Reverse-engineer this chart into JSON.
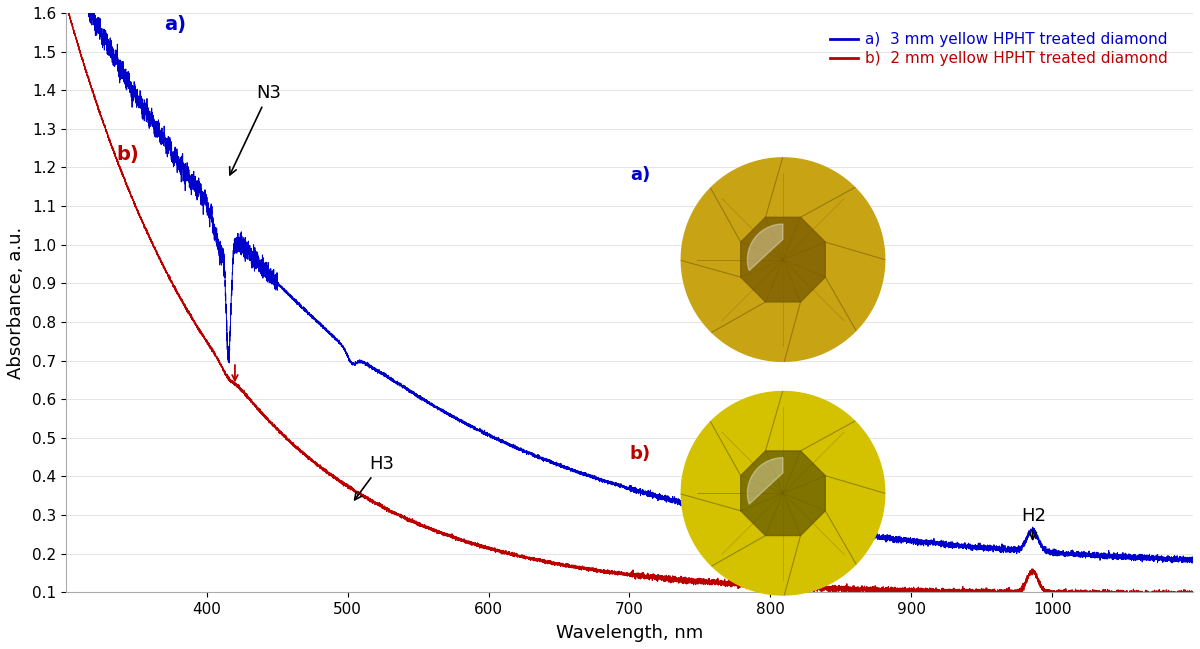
{
  "xlabel": "Wavelength, nm",
  "ylabel": "Absorbance, a.u.",
  "xlim": [
    300,
    1100
  ],
  "ylim": [
    0.1,
    1.6
  ],
  "yticks": [
    0.1,
    0.2,
    0.3,
    0.4,
    0.5,
    0.6,
    0.7,
    0.8,
    0.9,
    1.0,
    1.1,
    1.2,
    1.3,
    1.4,
    1.5,
    1.6
  ],
  "xticks": [
    400,
    500,
    600,
    700,
    800,
    900,
    1000
  ],
  "color_a": "#0000CC",
  "color_b": "#BB0000",
  "legend_a": "a)  3 mm yellow HPHT treated diamond",
  "legend_b": "b)  2 mm yellow HPHT treated diamond",
  "background_color": "#ffffff",
  "figsize": [
    12.0,
    6.49
  ],
  "dpi": 100
}
